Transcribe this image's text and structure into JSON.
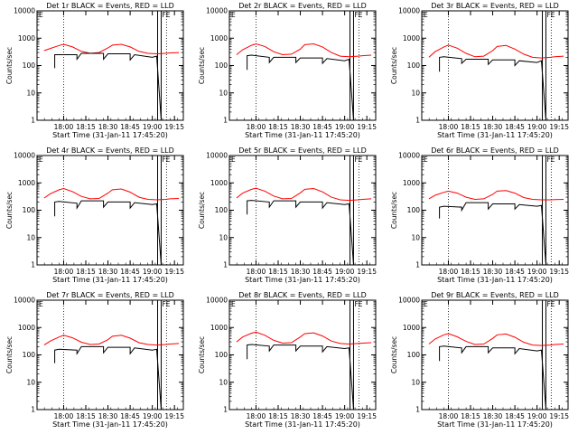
{
  "chart_data": [
    {
      "type": "line",
      "title": "Det 1r BLACK = Events, RED = LLD",
      "xlabel": "Start Time (31-Jan-11 17:45:20)",
      "ylabel": "Counts/sec",
      "yscale": "log",
      "ylim": [
        1,
        10000
      ],
      "x_ticks": [
        "18:00",
        "18:15",
        "18:30",
        "18:45",
        "19:00",
        "19:15"
      ],
      "y_ticks": [
        "1",
        "10",
        "100",
        "1000",
        "10000"
      ],
      "markers": [
        "E",
        "FE"
      ],
      "series": [
        {
          "color": "#ff0000",
          "x": [
            17.78,
            17.85,
            17.95,
            18.0,
            18.1,
            18.2,
            18.3,
            18.4,
            18.5,
            18.55,
            18.65,
            18.75,
            18.85,
            18.95,
            19.05,
            19.15,
            19.2,
            19.3
          ],
          "values": [
            350,
            420,
            540,
            600,
            480,
            330,
            280,
            300,
            440,
            560,
            600,
            480,
            330,
            280,
            270,
            280,
            290,
            300
          ]
        },
        {
          "color": "#000000",
          "x": [
            17.9,
            17.9,
            17.95,
            18.15,
            18.15,
            18.2,
            18.45,
            18.45,
            18.5,
            18.75,
            18.75,
            18.8,
            19.0,
            19.05,
            19.1
          ],
          "values": [
            80,
            250,
            250,
            250,
            170,
            280,
            280,
            170,
            270,
            270,
            160,
            250,
            200,
            220,
            1
          ]
        }
      ]
    },
    {
      "type": "line",
      "title": "Det 2r BLACK = Events, RED = LLD",
      "xlabel": "Start Time (31-Jan-11 17:45:20)",
      "ylabel": "Counts/sec",
      "yscale": "log",
      "ylim": [
        1,
        10000
      ],
      "x_ticks": [
        "18:00",
        "18:15",
        "18:30",
        "18:45",
        "19:00",
        "19:15"
      ],
      "y_ticks": [
        "1",
        "10",
        "100",
        "1000",
        "10000"
      ],
      "markers": [
        "E",
        "FE"
      ],
      "series": [
        {
          "color": "#ff0000",
          "x": [
            17.78,
            17.85,
            17.95,
            18.0,
            18.1,
            18.2,
            18.3,
            18.4,
            18.5,
            18.55,
            18.65,
            18.75,
            18.85,
            18.95,
            19.05,
            19.15,
            19.2,
            19.3
          ],
          "values": [
            250,
            380,
            550,
            620,
            500,
            320,
            250,
            260,
            400,
            580,
            620,
            480,
            300,
            220,
            210,
            220,
            230,
            240
          ]
        },
        {
          "color": "#000000",
          "x": [
            17.9,
            17.9,
            17.95,
            18.15,
            18.15,
            18.2,
            18.45,
            18.45,
            18.5,
            18.75,
            18.75,
            18.8,
            19.0,
            19.05,
            19.1
          ],
          "values": [
            70,
            230,
            240,
            200,
            130,
            200,
            200,
            130,
            190,
            190,
            120,
            180,
            150,
            170,
            1
          ]
        }
      ]
    },
    {
      "type": "line",
      "title": "Det 3r BLACK = Events, RED = LLD",
      "xlabel": "Start Time (31-Jan-11 17:45:20)",
      "ylabel": "Counts/sec",
      "yscale": "log",
      "ylim": [
        1,
        10000
      ],
      "x_ticks": [
        "18:00",
        "18:15",
        "18:30",
        "18:45",
        "19:00",
        "19:15"
      ],
      "y_ticks": [
        "1",
        "10",
        "100",
        "1000",
        "10000"
      ],
      "markers": [
        "E",
        "FE"
      ],
      "series": [
        {
          "color": "#ff0000",
          "x": [
            17.78,
            17.85,
            17.95,
            18.0,
            18.1,
            18.2,
            18.3,
            18.4,
            18.5,
            18.55,
            18.65,
            18.75,
            18.85,
            18.95,
            19.05,
            19.15,
            19.2,
            19.3
          ],
          "values": [
            200,
            320,
            480,
            560,
            430,
            280,
            210,
            220,
            350,
            500,
            540,
            400,
            260,
            200,
            190,
            200,
            210,
            220
          ]
        },
        {
          "color": "#000000",
          "x": [
            17.9,
            17.9,
            17.95,
            18.15,
            18.15,
            18.2,
            18.45,
            18.45,
            18.5,
            18.75,
            18.75,
            18.8,
            19.0,
            19.05,
            19.1
          ],
          "values": [
            60,
            200,
            210,
            180,
            120,
            170,
            170,
            110,
            160,
            160,
            100,
            150,
            130,
            150,
            1
          ]
        }
      ]
    },
    {
      "type": "line",
      "title": "Det 4r BLACK = Events, RED = LLD",
      "xlabel": "Start Time (31-Jan-11 17:45:20)",
      "ylabel": "Counts/sec",
      "yscale": "log",
      "ylim": [
        1,
        10000
      ],
      "x_ticks": [
        "18:00",
        "18:15",
        "18:30",
        "18:45",
        "19:00",
        "19:15"
      ],
      "y_ticks": [
        "1",
        "10",
        "100",
        "1000",
        "10000"
      ],
      "markers": [
        "E",
        "FE"
      ],
      "series": [
        {
          "color": "#ff0000",
          "x": [
            17.78,
            17.85,
            17.95,
            18.0,
            18.1,
            18.2,
            18.3,
            18.4,
            18.5,
            18.55,
            18.65,
            18.75,
            18.85,
            18.95,
            19.05,
            19.15,
            19.2,
            19.3
          ],
          "values": [
            280,
            400,
            560,
            620,
            480,
            320,
            260,
            270,
            420,
            560,
            600,
            460,
            300,
            250,
            240,
            250,
            260,
            270
          ]
        },
        {
          "color": "#000000",
          "x": [
            17.9,
            17.9,
            17.95,
            18.15,
            18.15,
            18.2,
            18.45,
            18.45,
            18.5,
            18.75,
            18.75,
            18.8,
            19.0,
            19.05,
            19.1
          ],
          "values": [
            60,
            200,
            210,
            180,
            120,
            220,
            220,
            130,
            200,
            200,
            120,
            190,
            160,
            170,
            1
          ]
        }
      ]
    },
    {
      "type": "line",
      "title": "Det 5r BLACK = Events, RED = LLD",
      "xlabel": "Start Time (31-Jan-11 17:45:20)",
      "ylabel": "Counts/sec",
      "yscale": "log",
      "ylim": [
        1,
        10000
      ],
      "x_ticks": [
        "18:00",
        "18:15",
        "18:30",
        "18:45",
        "19:00",
        "19:15"
      ],
      "y_ticks": [
        "1",
        "10",
        "100",
        "1000",
        "10000"
      ],
      "markers": [
        "E",
        "FE"
      ],
      "series": [
        {
          "color": "#ff0000",
          "x": [
            17.78,
            17.85,
            17.95,
            18.0,
            18.1,
            18.2,
            18.3,
            18.4,
            18.5,
            18.55,
            18.65,
            18.75,
            18.85,
            18.95,
            19.05,
            19.15,
            19.2,
            19.3
          ],
          "values": [
            280,
            420,
            580,
            640,
            500,
            330,
            260,
            270,
            430,
            580,
            620,
            470,
            300,
            240,
            230,
            240,
            250,
            260
          ]
        },
        {
          "color": "#000000",
          "x": [
            17.9,
            17.9,
            17.95,
            18.15,
            18.15,
            18.2,
            18.45,
            18.45,
            18.5,
            18.75,
            18.75,
            18.8,
            19.0,
            19.05,
            19.1
          ],
          "values": [
            70,
            220,
            230,
            200,
            130,
            220,
            220,
            130,
            200,
            200,
            120,
            190,
            160,
            170,
            1
          ]
        }
      ]
    },
    {
      "type": "line",
      "title": "Det 6r BLACK = Events, RED = LLD",
      "xlabel": "Start Time (31-Jan-11 17:45:20)",
      "ylabel": "Counts/sec",
      "yscale": "log",
      "ylim": [
        1,
        10000
      ],
      "x_ticks": [
        "18:00",
        "18:15",
        "18:30",
        "18:45",
        "19:00",
        "19:15"
      ],
      "y_ticks": [
        "1",
        "10",
        "100",
        "1000",
        "10000"
      ],
      "markers": [
        "E",
        "FE"
      ],
      "series": [
        {
          "color": "#ff0000",
          "x": [
            17.78,
            17.85,
            17.95,
            18.0,
            18.1,
            18.2,
            18.3,
            18.4,
            18.5,
            18.55,
            18.65,
            18.75,
            18.85,
            18.95,
            19.05,
            19.15,
            19.2,
            19.3
          ],
          "values": [
            260,
            350,
            450,
            500,
            420,
            300,
            250,
            260,
            380,
            500,
            520,
            420,
            290,
            250,
            240,
            240,
            245,
            250
          ]
        },
        {
          "color": "#000000",
          "x": [
            17.9,
            17.9,
            17.95,
            18.15,
            18.15,
            18.2,
            18.45,
            18.45,
            18.5,
            18.75,
            18.75,
            18.8,
            19.0,
            19.05,
            19.1
          ],
          "values": [
            50,
            130,
            140,
            130,
            100,
            190,
            190,
            110,
            170,
            170,
            110,
            160,
            140,
            150,
            1
          ]
        }
      ]
    },
    {
      "type": "line",
      "title": "Det 7r BLACK = Events, RED = LLD",
      "xlabel": "Start Time (31-Jan-11 17:45:20)",
      "ylabel": "Counts/sec",
      "yscale": "log",
      "ylim": [
        1,
        10000
      ],
      "x_ticks": [
        "18:00",
        "18:15",
        "18:30",
        "18:45",
        "19:00",
        "19:15"
      ],
      "y_ticks": [
        "1",
        "10",
        "100",
        "1000",
        "10000"
      ],
      "markers": [
        "E",
        "FE"
      ],
      "series": [
        {
          "color": "#ff0000",
          "x": [
            17.78,
            17.85,
            17.95,
            18.0,
            18.1,
            18.2,
            18.3,
            18.4,
            18.5,
            18.55,
            18.65,
            18.75,
            18.85,
            18.95,
            19.05,
            19.15,
            19.2,
            19.3
          ],
          "values": [
            230,
            320,
            450,
            520,
            420,
            290,
            240,
            250,
            360,
            480,
            520,
            410,
            280,
            240,
            230,
            240,
            250,
            260
          ]
        },
        {
          "color": "#000000",
          "x": [
            17.9,
            17.9,
            17.95,
            18.15,
            18.15,
            18.2,
            18.45,
            18.45,
            18.5,
            18.75,
            18.75,
            18.8,
            19.0,
            19.05,
            19.1
          ],
          "values": [
            50,
            150,
            160,
            150,
            110,
            200,
            200,
            120,
            190,
            190,
            110,
            180,
            150,
            160,
            1
          ]
        }
      ]
    },
    {
      "type": "line",
      "title": "Det 8r BLACK = Events, RED = LLD",
      "xlabel": "Start Time (31-Jan-11 17:45:20)",
      "ylabel": "Counts/sec",
      "yscale": "log",
      "ylim": [
        1,
        10000
      ],
      "x_ticks": [
        "18:00",
        "18:15",
        "18:30",
        "18:45",
        "19:00",
        "19:15"
      ],
      "y_ticks": [
        "1",
        "10",
        "100",
        "1000",
        "10000"
      ],
      "markers": [
        "E",
        "FE"
      ],
      "series": [
        {
          "color": "#ff0000",
          "x": [
            17.78,
            17.85,
            17.95,
            18.0,
            18.1,
            18.2,
            18.3,
            18.4,
            18.5,
            18.55,
            18.65,
            18.75,
            18.85,
            18.95,
            19.05,
            19.15,
            19.2,
            19.3
          ],
          "values": [
            300,
            450,
            620,
            680,
            520,
            340,
            270,
            280,
            450,
            600,
            640,
            490,
            320,
            260,
            250,
            260,
            270,
            280
          ]
        },
        {
          "color": "#000000",
          "x": [
            17.9,
            17.9,
            17.95,
            18.15,
            18.15,
            18.2,
            18.45,
            18.45,
            18.5,
            18.75,
            18.75,
            18.8,
            19.0,
            19.05,
            19.1
          ],
          "values": [
            70,
            230,
            240,
            210,
            140,
            230,
            230,
            140,
            210,
            210,
            130,
            200,
            170,
            180,
            1
          ]
        }
      ]
    },
    {
      "type": "line",
      "title": "Det 9r BLACK = Events, RED = LLD",
      "xlabel": "Start Time (31-Jan-11 17:45:20)",
      "ylabel": "Counts/sec",
      "yscale": "log",
      "ylim": [
        1,
        10000
      ],
      "x_ticks": [
        "18:00",
        "18:15",
        "18:30",
        "18:45",
        "19:00",
        "19:15"
      ],
      "y_ticks": [
        "1",
        "10",
        "100",
        "1000",
        "10000"
      ],
      "markers": [
        "E",
        "FE"
      ],
      "series": [
        {
          "color": "#ff0000",
          "x": [
            17.78,
            17.85,
            17.95,
            18.0,
            18.1,
            18.2,
            18.3,
            18.4,
            18.5,
            18.55,
            18.65,
            18.75,
            18.85,
            18.95,
            19.05,
            19.15,
            19.2,
            19.3
          ],
          "values": [
            250,
            380,
            540,
            600,
            460,
            310,
            240,
            250,
            400,
            540,
            580,
            440,
            290,
            230,
            220,
            230,
            240,
            250
          ]
        },
        {
          "color": "#000000",
          "x": [
            17.9,
            17.9,
            17.95,
            18.15,
            18.15,
            18.2,
            18.45,
            18.45,
            18.5,
            18.75,
            18.75,
            18.8,
            19.0,
            19.05,
            19.1
          ],
          "values": [
            60,
            200,
            210,
            180,
            120,
            200,
            200,
            120,
            180,
            180,
            110,
            170,
            140,
            150,
            1
          ]
        }
      ]
    }
  ]
}
